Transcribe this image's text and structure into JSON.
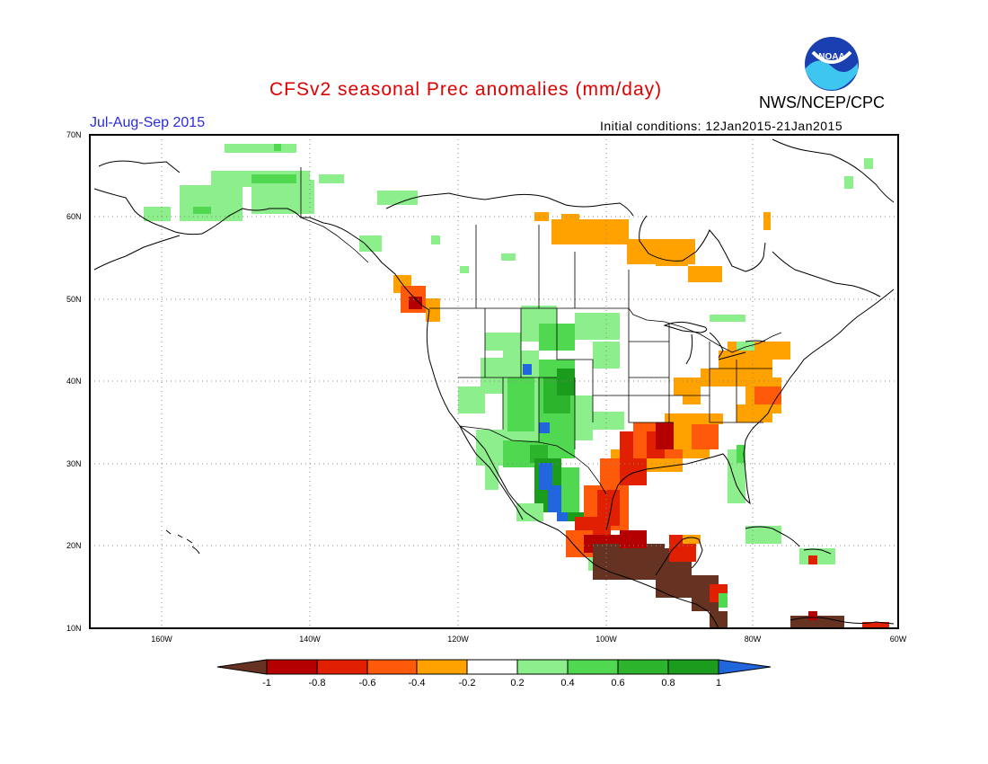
{
  "header": {
    "title": "CFSv2 seasonal Prec anomalies (mm/day)",
    "season": "Jul-Aug-Sep 2015",
    "initial_conditions": "Initial conditions: 12Jan2015-21Jan2015",
    "agency": "NWS/NCEP/CPC",
    "logo_text": "NOAA",
    "logo_icon": "noaa-logo-icon"
  },
  "map": {
    "projection": "lat-lon",
    "lon_range": [
      -172,
      -60
    ],
    "lat_range": [
      10,
      70
    ],
    "grid": "dotted",
    "lat_labels": [
      "70N",
      "60N",
      "50N",
      "40N",
      "30N",
      "20N",
      "10N"
    ],
    "lon_labels": [
      "160W",
      "140W",
      "120W",
      "100W",
      "80W",
      "60W"
    ]
  },
  "colorbar": {
    "labels": [
      "-1",
      "-0.8",
      "-0.6",
      "-0.4",
      "-0.2",
      "0.2",
      "0.4",
      "0.6",
      "0.8",
      "1"
    ],
    "colors": [
      "#663322",
      "#b40000",
      "#e02000",
      "#ff5a0a",
      "#ffa200",
      "#ffffff",
      "#8cef8c",
      "#50d950",
      "#2cb42c",
      "#1c9c1c",
      "#2266dd"
    ]
  },
  "anomaly_regions": [
    {
      "name": "Alaska",
      "level": "+0.2 to +0.4"
    },
    {
      "name": "Southwest US / Mexico monsoon",
      "level": "+0.4 to >+1"
    },
    {
      "name": "Texas / Gulf coast",
      "level": "-0.2 to -0.8"
    },
    {
      "name": "Southern Mexico / Central America",
      "level": "< -1"
    },
    {
      "name": "Mid-Atlantic / Ohio Valley",
      "level": "-0.2 to -0.6"
    },
    {
      "name": "Pacific Northwest coast",
      "level": "-0.2 to -0.8"
    },
    {
      "name": "Hudson Bay region",
      "level": "-0.2 to -0.4"
    },
    {
      "name": "Florida / Caribbean",
      "level": "+0.2 to +0.4"
    }
  ]
}
